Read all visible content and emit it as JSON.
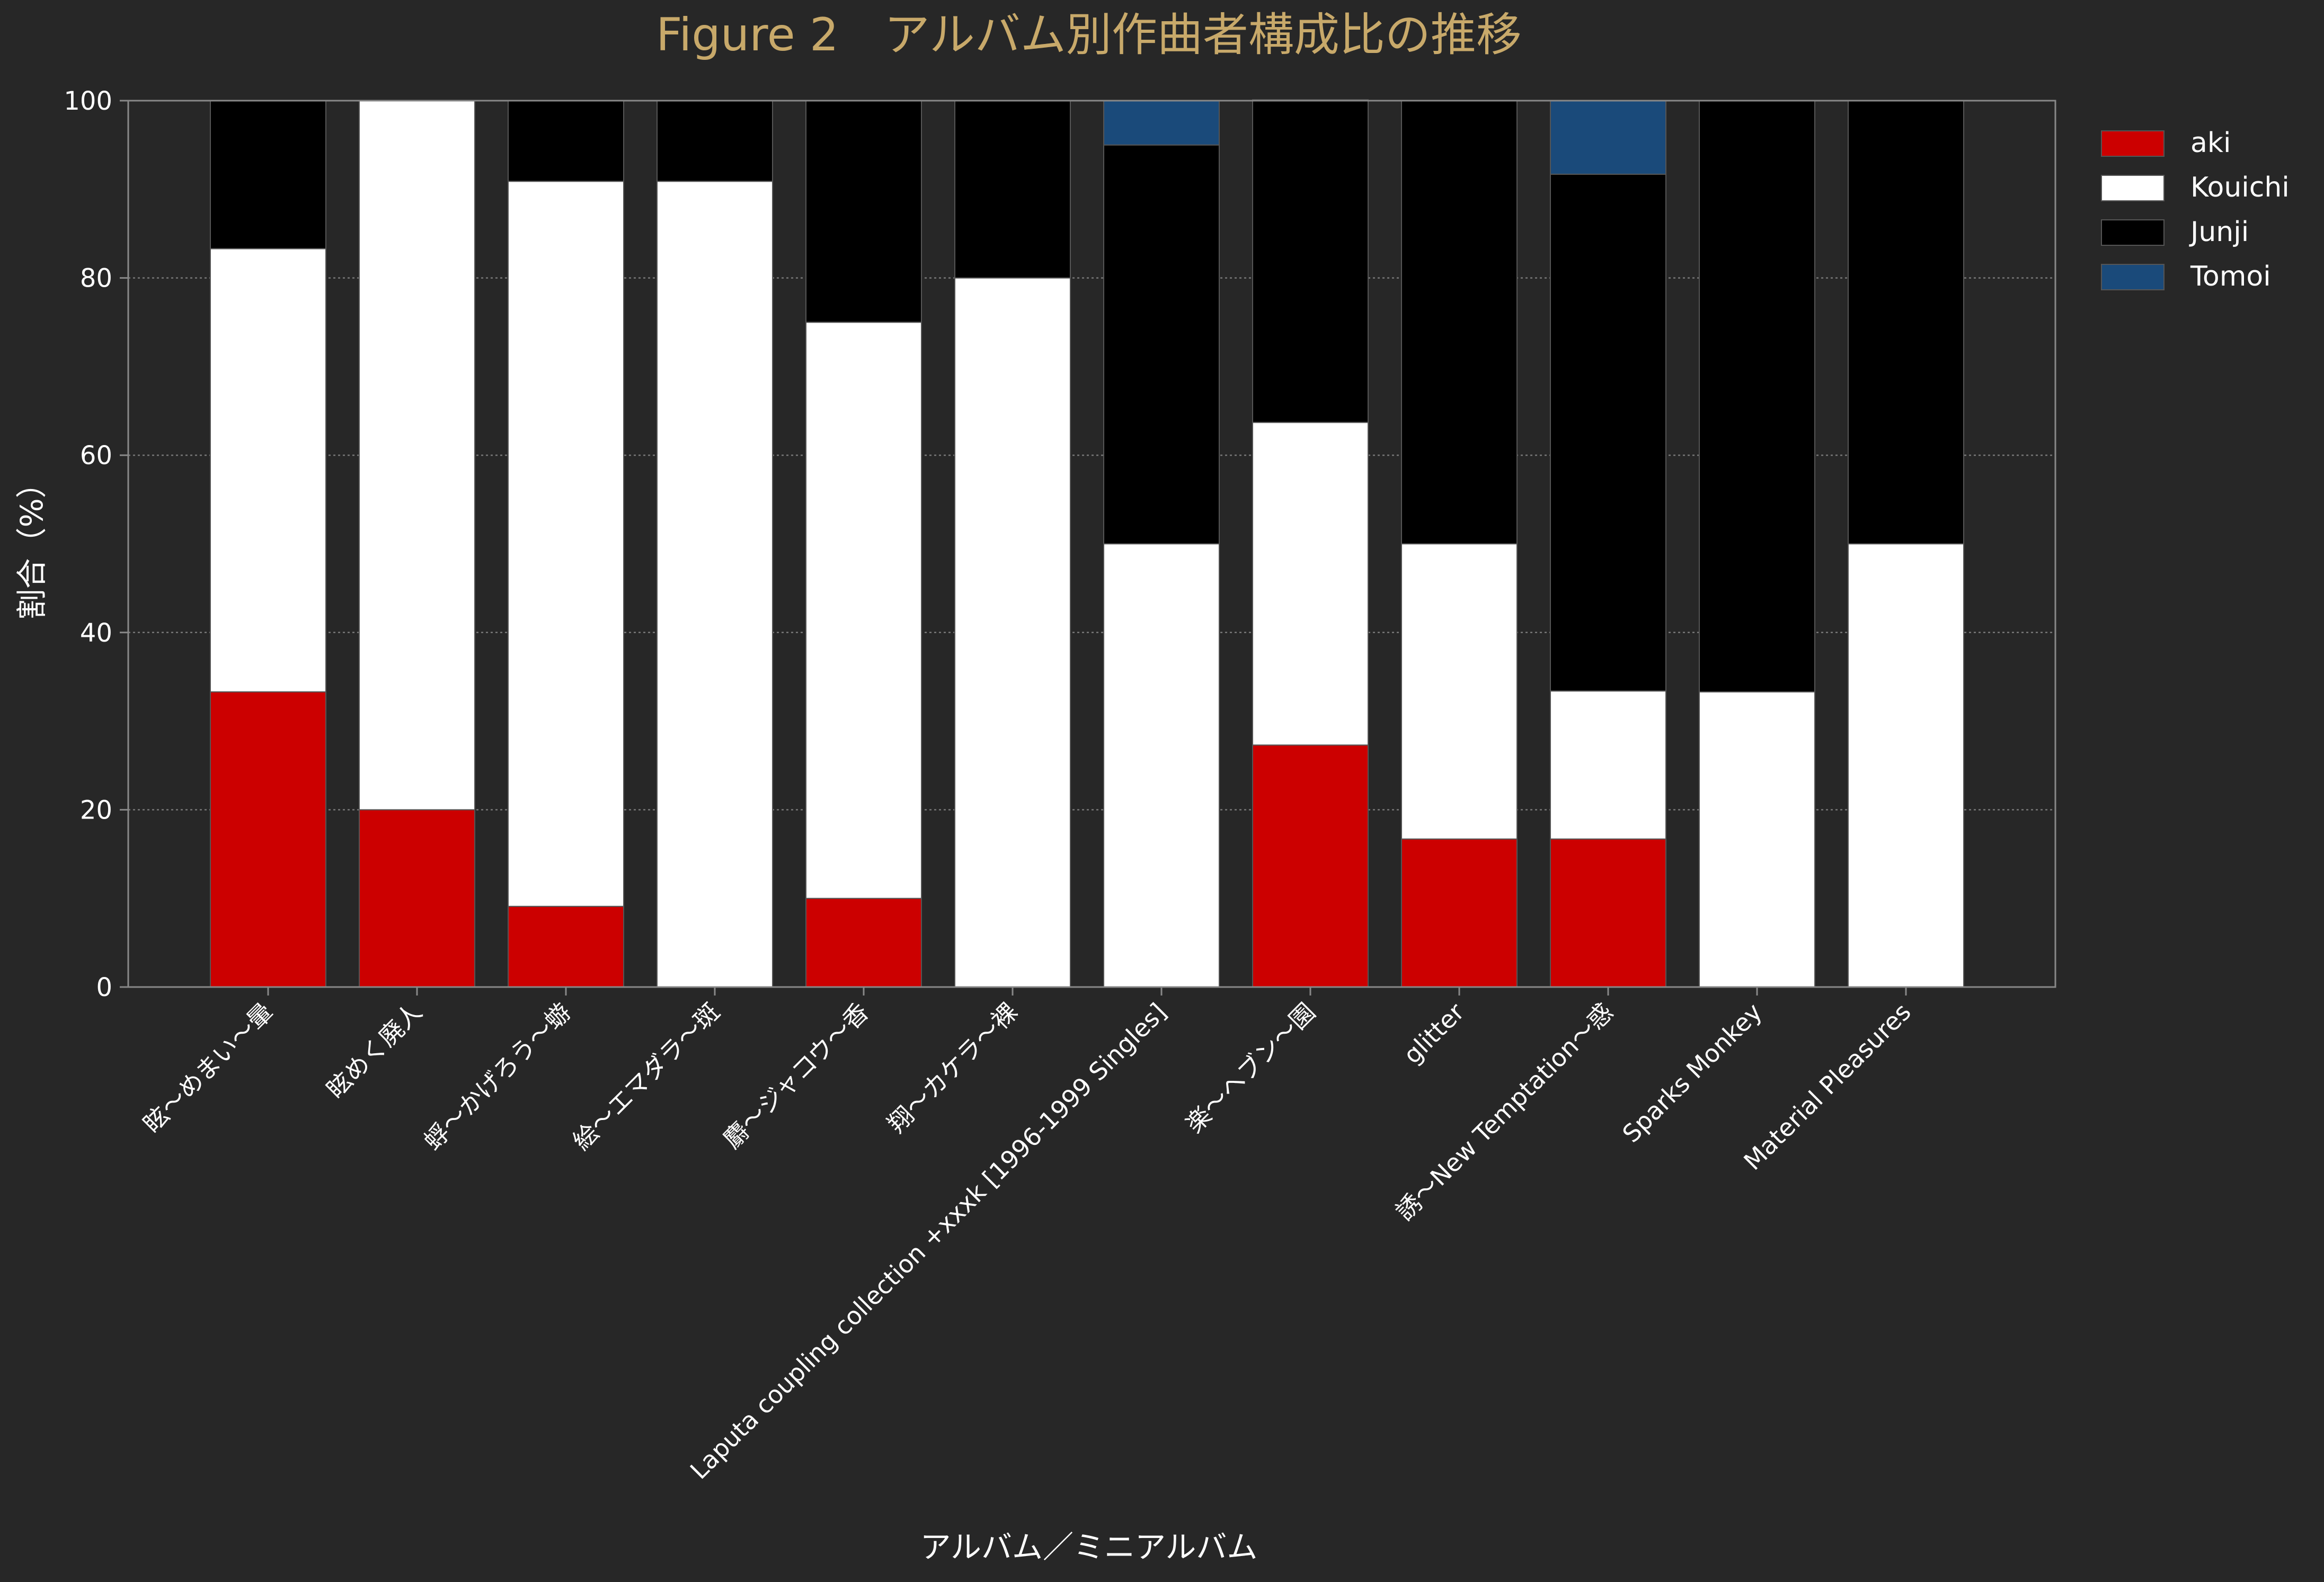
{
  "chart_data": {
    "type": "bar",
    "stacked": true,
    "title": "Figure 2　アルバム別作曲者構成比の推移",
    "xlabel": "アルバム／ミニアルバム",
    "ylabel": "割合（%）",
    "ylim": [
      0,
      100
    ],
    "yticks": [
      0,
      20,
      40,
      60,
      80,
      100
    ],
    "grid": true,
    "legend_position": "top-right",
    "categories": [
      "眩〜めまい〜暈",
      "眩めく廃人",
      "蜉〜かげろう〜蝣",
      "絵〜エマダラ〜斑",
      "麝〜ジャコウ〜香",
      "翔〜カケラ〜裸",
      "Laputa coupling collection +xxxk [1996-1999 Singles]",
      "楽〜ヘブン〜園",
      "glitter",
      "誘〜New Temptation〜惑",
      "Sparks Monkey",
      "Material Pleasures"
    ],
    "series": [
      {
        "name": "aki",
        "color": "#cc0000",
        "values": [
          33.3,
          20,
          9.1,
          0,
          10,
          0,
          0,
          27.3,
          16.7,
          16.7,
          0,
          0
        ]
      },
      {
        "name": "Kouichi",
        "color": "#ffffff",
        "values": [
          50,
          80,
          81.8,
          90.9,
          65,
          80,
          50,
          36.4,
          33.3,
          16.7,
          33.3,
          50
        ]
      },
      {
        "name": "Junji",
        "color": "#000000",
        "values": [
          16.7,
          0,
          9.1,
          9.1,
          25,
          20,
          45,
          36.4,
          50,
          58.3,
          66.7,
          50
        ]
      },
      {
        "name": "Tomoi",
        "color": "#1a4a7a",
        "values": [
          0,
          0,
          0,
          0,
          0,
          0,
          5,
          0,
          0,
          8.3,
          0,
          0
        ]
      }
    ]
  },
  "colors": {
    "background": "#272727",
    "title": "#c8a96a",
    "text": "#ffffff",
    "axis": "#888888",
    "grid": "#777777"
  }
}
